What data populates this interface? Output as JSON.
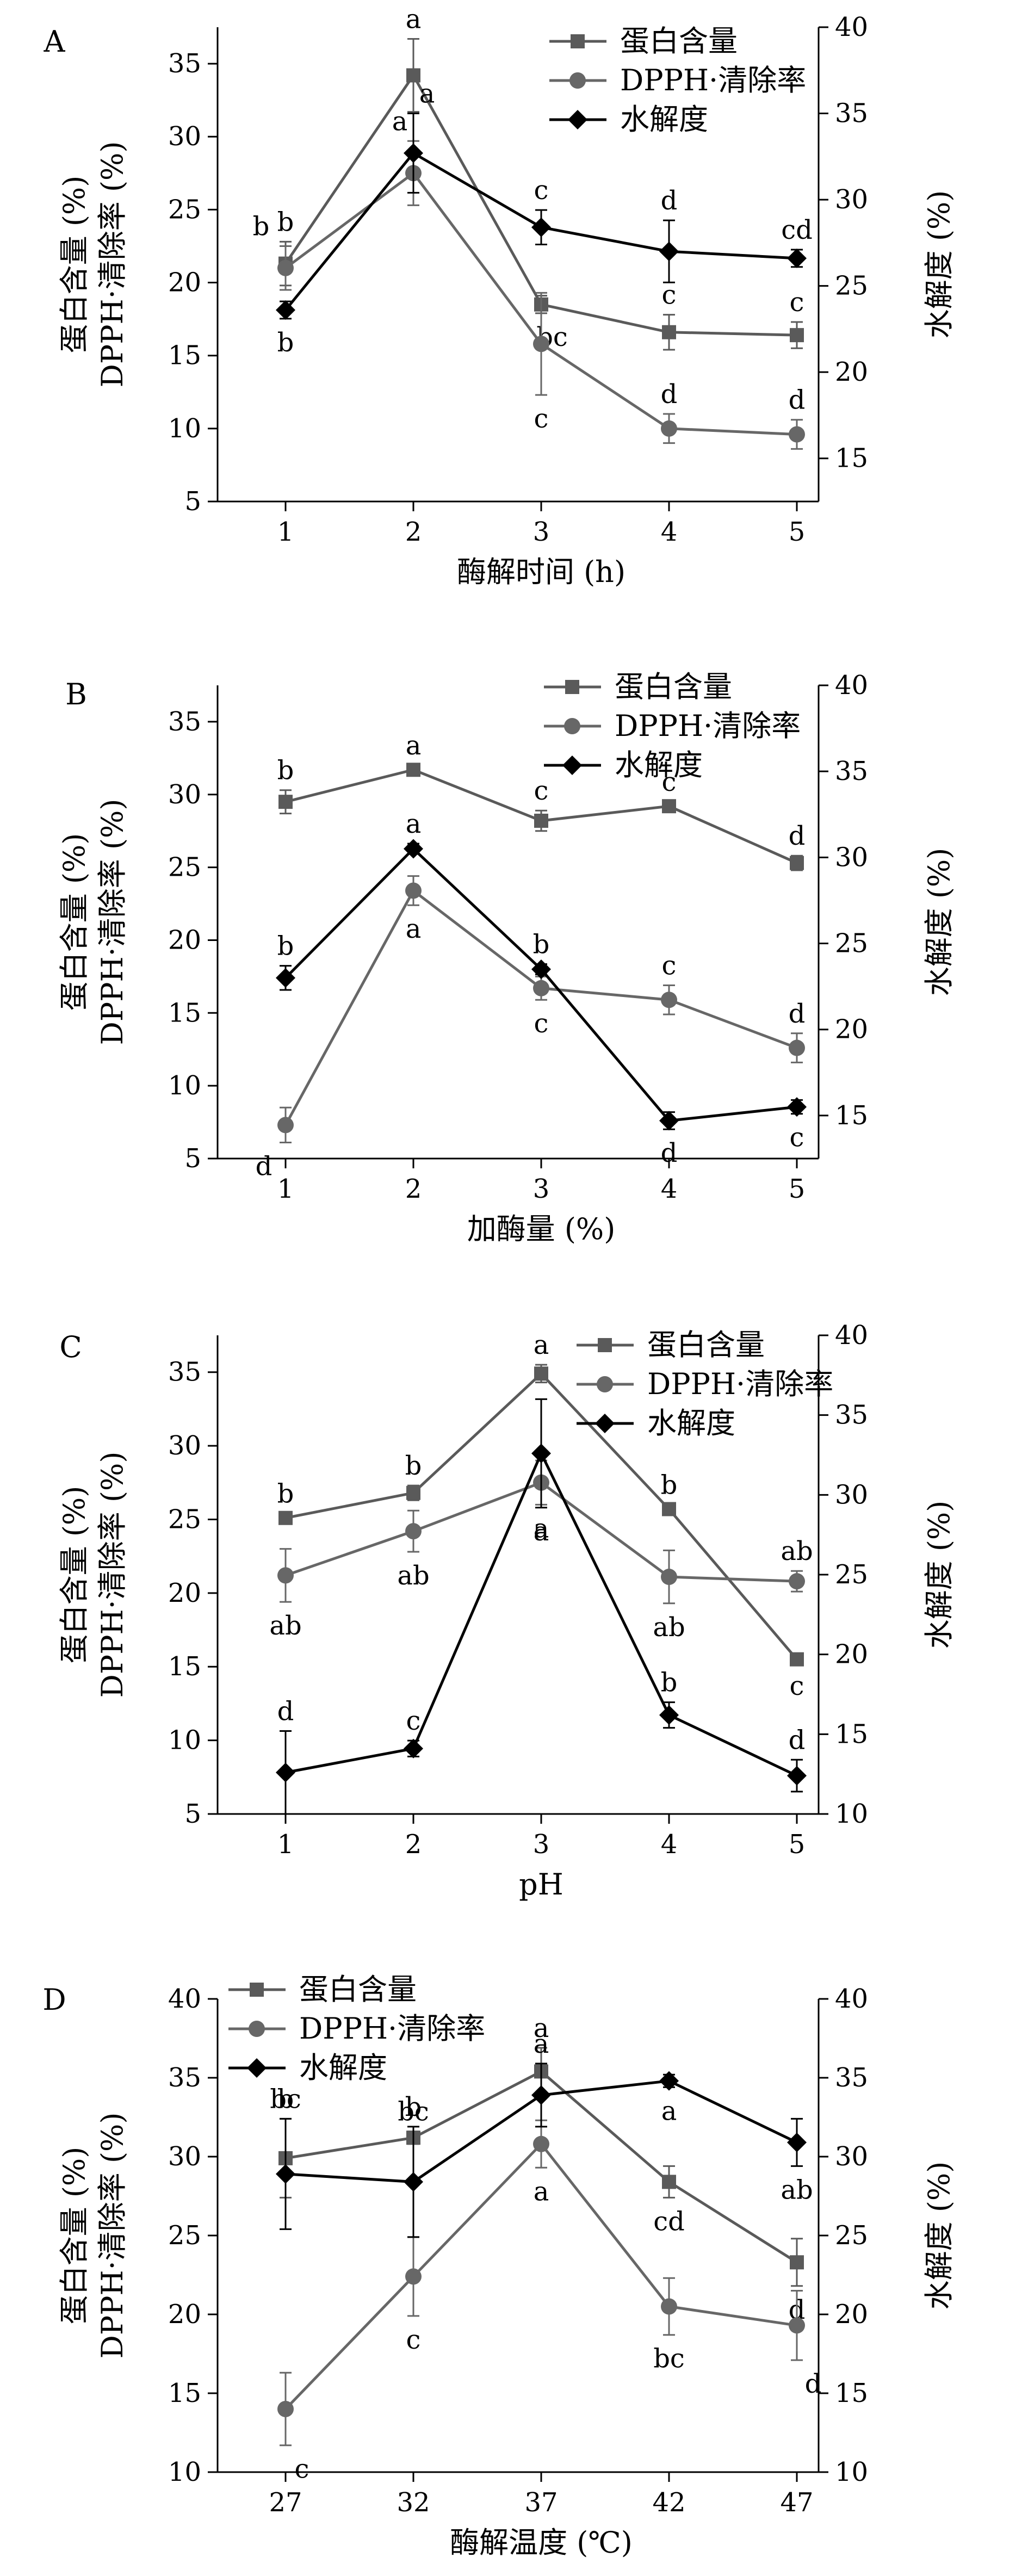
{
  "colors": {
    "protein": "#5a5a5a",
    "dpph": "#676767",
    "hydrolysis": "#000000",
    "axis": "#000000"
  },
  "chart_data": [
    {
      "panel": "A",
      "type": "line",
      "title": "",
      "xlabel": "酶解时间 (h)",
      "ylabel_left_line1": "蛋白含量 (%)",
      "ylabel_left_line2": "DPPH·清除率 (%)",
      "ylabel_right": "水解度 (%)",
      "categories": [
        "1",
        "2",
        "3",
        "4",
        "5"
      ],
      "ylim_left": [
        5,
        37.5
      ],
      "yticks_left": [
        "5",
        "10",
        "15",
        "20",
        "25",
        "30",
        "35"
      ],
      "ylim_right": [
        12.5,
        40
      ],
      "yticks_right": [
        "15",
        "20",
        "25",
        "30",
        "35",
        "40"
      ],
      "legend_position": "top-right",
      "series": [
        {
          "name": "蛋白含量",
          "axis": "left",
          "marker": "square",
          "values": [
            21.3,
            34.2,
            18.5,
            16.6,
            16.4
          ],
          "errors": [
            1.5,
            2.5,
            0.6,
            1.2,
            0.9
          ],
          "letters": [
            "b",
            "a",
            "bc",
            "c",
            "c"
          ]
        },
        {
          "name": "DPPH·清除率",
          "axis": "left",
          "marker": "circle",
          "values": [
            21.0,
            27.5,
            15.8,
            10.0,
            9.6
          ],
          "errors": [
            1.5,
            2.2,
            3.5,
            1.0,
            1.0
          ],
          "letters": [
            "b",
            "a",
            "c",
            "d",
            "d"
          ]
        },
        {
          "name": "水解度",
          "axis": "right",
          "marker": "diamond",
          "values": [
            23.6,
            32.7,
            28.4,
            27.0,
            26.6
          ],
          "errors": [
            0.5,
            2.3,
            1.0,
            1.8,
            0.5
          ],
          "letters": [
            "b",
            "a",
            "c",
            "d",
            "cd"
          ]
        }
      ]
    },
    {
      "panel": "B",
      "type": "line",
      "title": "",
      "xlabel": "加酶量 (%)",
      "ylabel_left_line1": "蛋白含量 (%)",
      "ylabel_left_line2": "DPPH·清除率 (%)",
      "ylabel_right": "水解度 (%)",
      "categories": [
        "1",
        "2",
        "3",
        "4",
        "5"
      ],
      "ylim_left": [
        5,
        37.5
      ],
      "yticks_left": [
        "5",
        "10",
        "15",
        "20",
        "25",
        "30",
        "35"
      ],
      "ylim_right": [
        12.5,
        40
      ],
      "yticks_right": [
        "15",
        "20",
        "25",
        "30",
        "35",
        "40"
      ],
      "legend_position": "top-right",
      "series": [
        {
          "name": "蛋白含量",
          "axis": "left",
          "marker": "square",
          "values": [
            29.5,
            31.7,
            28.2,
            29.2,
            25.3
          ],
          "errors": [
            0.8,
            0.3,
            0.7,
            0.3,
            0.5
          ],
          "letters": [
            "b",
            "a",
            "c",
            "c",
            "d"
          ]
        },
        {
          "name": "DPPH·清除率",
          "axis": "left",
          "marker": "circle",
          "values": [
            7.3,
            23.4,
            16.7,
            15.9,
            12.6
          ],
          "errors": [
            1.2,
            1.0,
            0.8,
            1.0,
            1.0
          ],
          "letters": [
            "d",
            "a",
            "c",
            "c",
            "d"
          ]
        },
        {
          "name": "水解度",
          "axis": "right",
          "marker": "diamond",
          "values": [
            23.0,
            30.5,
            23.5,
            14.7,
            15.5
          ],
          "errors": [
            0.7,
            0.3,
            0.3,
            0.5,
            0.4
          ],
          "letters": [
            "b",
            "a",
            "b",
            "d",
            "c"
          ]
        }
      ]
    },
    {
      "panel": "C",
      "type": "line",
      "title": "",
      "xlabel": "pH",
      "ylabel_left_line1": "蛋白含量 (%)",
      "ylabel_left_line2": "DPPH·清除率 (%)",
      "ylabel_right": "水解度 (%)",
      "categories": [
        "1",
        "2",
        "3",
        "4",
        "5"
      ],
      "ylim_left": [
        5,
        37.5
      ],
      "yticks_left": [
        "5",
        "10",
        "15",
        "20",
        "25",
        "30",
        "35"
      ],
      "ylim_right": [
        10,
        40
      ],
      "yticks_right": [
        "10",
        "15",
        "20",
        "25",
        "30",
        "35",
        "40"
      ],
      "legend_position": "top-right",
      "series": [
        {
          "name": "蛋白含量",
          "axis": "left",
          "marker": "square",
          "values": [
            25.1,
            26.8,
            34.9,
            25.7,
            15.5
          ],
          "errors": [
            0.3,
            0.5,
            0.6,
            0.3,
            0.2
          ],
          "letters": [
            "b",
            "b",
            "a",
            "b",
            "c"
          ]
        },
        {
          "name": "DPPH·清除率",
          "axis": "left",
          "marker": "circle",
          "values": [
            21.2,
            24.2,
            27.5,
            21.1,
            20.8
          ],
          "errors": [
            1.8,
            1.4,
            1.5,
            1.8,
            0.7
          ],
          "letters": [
            "ab",
            "ab",
            "a",
            "ab",
            "ab"
          ]
        },
        {
          "name": "水解度",
          "axis": "right",
          "marker": "diamond",
          "values": [
            12.6,
            14.1,
            32.6,
            16.2,
            12.4
          ],
          "errors": [
            2.6,
            0.5,
            3.4,
            0.8,
            1.0
          ],
          "letters": [
            "d",
            "c",
            "a",
            "b",
            "d"
          ]
        }
      ]
    },
    {
      "panel": "D",
      "type": "line",
      "title": "",
      "xlabel": "酶解温度 (℃)",
      "ylabel_left_line1": "蛋白含量 (%)",
      "ylabel_left_line2": "DPPH·清除率 (%)",
      "ylabel_right": "水解度 (%)",
      "categories": [
        "27",
        "32",
        "37",
        "42",
        "47"
      ],
      "ylim_left": [
        10,
        40
      ],
      "yticks_left": [
        "10",
        "15",
        "20",
        "25",
        "30",
        "35",
        "40"
      ],
      "ylim_right": [
        10,
        40
      ],
      "yticks_right": [
        "10",
        "15",
        "20",
        "25",
        "30",
        "35",
        "40"
      ],
      "legend_position": "top-left",
      "series": [
        {
          "name": "蛋白含量",
          "axis": "left",
          "marker": "square",
          "values": [
            29.9,
            31.2,
            35.4,
            28.4,
            23.3
          ],
          "errors": [
            2.5,
            0.4,
            1.5,
            1.0,
            1.5
          ],
          "letters": [
            "bc",
            "bc",
            "a",
            "cd",
            "d"
          ]
        },
        {
          "name": "DPPH·清除率",
          "axis": "left",
          "marker": "circle",
          "values": [
            14.0,
            22.4,
            30.8,
            20.5,
            19.3
          ],
          "errors": [
            2.3,
            2.5,
            1.5,
            1.8,
            2.2
          ],
          "letters": [
            "c",
            "c",
            "a",
            "bc",
            "d"
          ]
        },
        {
          "name": "水解度",
          "axis": "right",
          "marker": "diamond",
          "values": [
            28.9,
            28.4,
            33.9,
            34.8,
            30.9
          ],
          "errors": [
            3.5,
            3.5,
            2.0,
            0.4,
            1.5
          ],
          "letters": [
            "b",
            "b",
            "a",
            "a",
            "ab"
          ]
        }
      ]
    }
  ]
}
